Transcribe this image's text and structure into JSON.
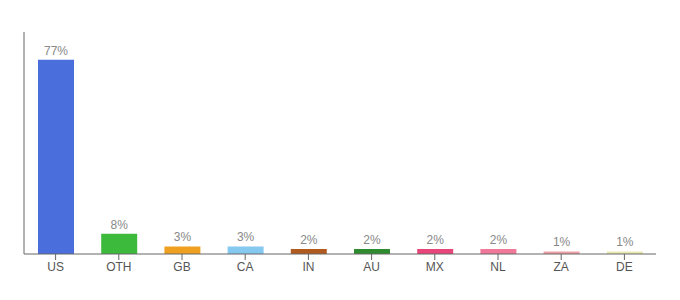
{
  "chart_data": {
    "type": "bar",
    "categories": [
      "US",
      "OTH",
      "GB",
      "CA",
      "IN",
      "AU",
      "MX",
      "NL",
      "ZA",
      "DE"
    ],
    "values": [
      77,
      8,
      3,
      3,
      2,
      2,
      2,
      2,
      1,
      1
    ],
    "value_labels": [
      "77%",
      "8%",
      "3%",
      "3%",
      "2%",
      "2%",
      "2%",
      "2%",
      "1%",
      "1%"
    ],
    "colors": [
      "#4a6edb",
      "#3cba3c",
      "#f0a020",
      "#85c8f0",
      "#b05a20",
      "#2e8b2e",
      "#e8457a",
      "#f07898",
      "#f0a0a8",
      "#e8e8b0"
    ],
    "ylim": [
      0,
      88
    ],
    "data_labels": true,
    "tick_labels": "x",
    "grid": false
  }
}
